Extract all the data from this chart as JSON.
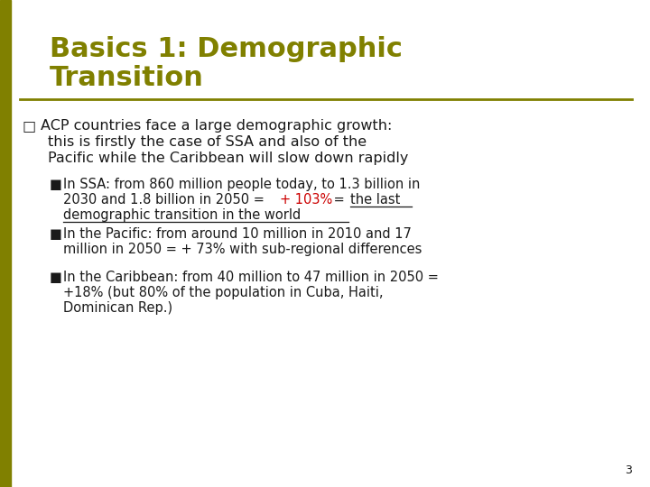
{
  "title_line1": "Basics 1: Demographic",
  "title_line2": "Transition",
  "title_color": "#808000",
  "slide_bg": "#ffffff",
  "left_bar_color": "#808000",
  "separator_color": "#808000",
  "text_color": "#1a1a1a",
  "red_color": "#cc0000",
  "main_bullet": "□",
  "sub_bullet": "■",
  "page_number": "3",
  "title_fontsize": 22,
  "main_fontsize": 11.5,
  "sub_fontsize": 10.5
}
